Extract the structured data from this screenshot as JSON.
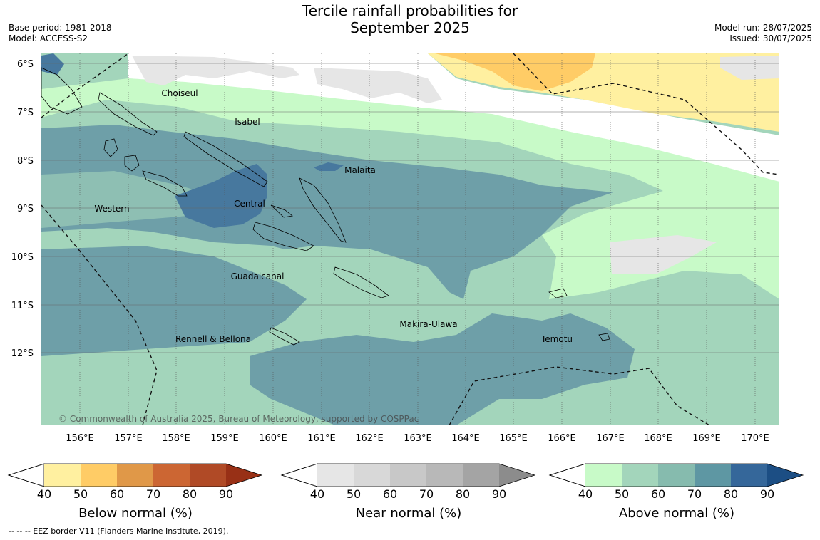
{
  "header": {
    "title_line1": "Tercile rainfall probabilities for",
    "title_line2": "September 2025",
    "base_period": "Base period: 1981-2018",
    "model": "Model: ACCESS-S2",
    "model_run": "Model run: 28/07/2025",
    "issued": "Issued: 30/07/2025"
  },
  "map": {
    "lon_labels": [
      "156°E",
      "157°E",
      "158°E",
      "159°E",
      "160°E",
      "161°E",
      "162°E",
      "163°E",
      "164°E",
      "165°E",
      "166°E",
      "167°E",
      "168°E",
      "169°E",
      "170°E"
    ],
    "lat_labels": [
      "6°S",
      "7°S",
      "8°S",
      "9°S",
      "10°S",
      "11°S",
      "12°S"
    ],
    "provinces": [
      "Choiseul",
      "Isabel",
      "Malaita",
      "Western",
      "Central",
      "Guadalcanal",
      "Makira-Ulawa",
      "Rennell & Bellona",
      "Temotu"
    ],
    "copyright": "© Commonwealth of Australia 2025, Bureau of Meteorology, supported by COSPPac"
  },
  "legends": [
    {
      "label": "Below normal (%)",
      "ticks": [
        "40",
        "50",
        "60",
        "70",
        "80",
        "90"
      ],
      "colors": [
        "#fff0a0",
        "#ffcc66",
        "#e09848",
        "#cc6633",
        "#b04a26",
        "#983016"
      ]
    },
    {
      "label": "Near normal (%)",
      "ticks": [
        "40",
        "50",
        "60",
        "70",
        "80",
        "90"
      ],
      "colors": [
        "#e6e6e6",
        "#d8d8d8",
        "#c8c8c8",
        "#b8b8b8",
        "#a4a4a4",
        "#8c8c8c"
      ]
    },
    {
      "label": "Above normal (%)",
      "ticks": [
        "40",
        "50",
        "60",
        "70",
        "80",
        "90"
      ],
      "colors": [
        "#c8fac8",
        "#a3d5bb",
        "#86bbae",
        "#5e97a3",
        "#35679a",
        "#1c4e84"
      ]
    }
  ],
  "footnote": "-- -- -- EEZ border V11 (Flanders Marine Institute, 2019)."
}
